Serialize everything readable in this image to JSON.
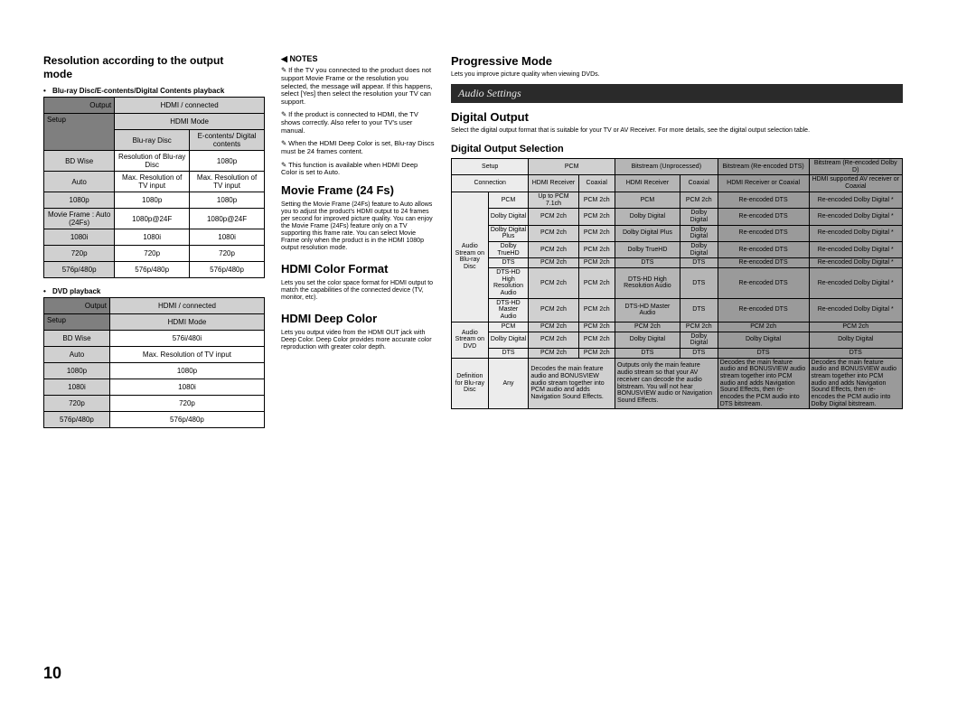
{
  "page_number": "10",
  "col1": {
    "heading": "Resolution according to the output mode",
    "bullet1": "Blu-ray Disc/E-contents/Digital Contents playback",
    "bullet2": "DVD playback",
    "t1": {
      "out": "Output",
      "setup": "Setup",
      "h_conn": "HDMI / connected",
      "h_mode": "HDMI Mode",
      "h_bd": "Blu-ray Disc",
      "h_ec": "E-contents/\nDigital\ncontents",
      "rows": [
        [
          "BD Wise",
          "Resolution of\nBlu-ray Disc",
          "1080p"
        ],
        [
          "Auto",
          "Max. Resolution\nof TV input",
          "Max. Resolution\nof TV input"
        ],
        [
          "1080p",
          "1080p",
          "1080p"
        ],
        [
          "Movie Frame :\nAuto (24Fs)",
          "1080p@24F",
          "1080p@24F"
        ],
        [
          "1080i",
          "1080i",
          "1080i"
        ],
        [
          "720p",
          "720p",
          "720p"
        ],
        [
          "576p/480p",
          "576p/480p",
          "576p/480p"
        ]
      ]
    },
    "t2": {
      "out": "Output",
      "setup": "Setup",
      "h_conn": "HDMI / connected",
      "h_mode": "HDMI Mode",
      "rows": [
        [
          "BD Wise",
          "576i/480i"
        ],
        [
          "Auto",
          "Max. Resolution of TV input"
        ],
        [
          "1080p",
          "1080p"
        ],
        [
          "1080i",
          "1080i"
        ],
        [
          "720p",
          "720p"
        ],
        [
          "576p/480p",
          "576p/480p"
        ]
      ]
    }
  },
  "col2": {
    "notes_label": "NOTES",
    "n1": "If the TV you connected to the product does not support Movie Frame or the resolution you selected, the message will appear. If this happens, select [Yes] then select the resolution your TV can support.",
    "n2": "If the product is connected to HDMI, the TV shows correctly. Also refer to your TV's user manual.",
    "n3": "When the HDMI Deep Color is set, Blu-ray Discs must be 24 frames content.",
    "n4": "This function is available when HDMI Deep Color is set to Auto.",
    "h_mff": "Movie Frame (24 Fs)",
    "mff_body": "Setting the Movie Frame (24Fs) feature to Auto allows you to adjust the product's HDMI output to 24 frames per second for improved picture quality. You can enjoy the Movie Frame (24Fs) feature only on a TV supporting this frame rate. You can select Movie Frame only when the product is in the HDMI 1080p output resolution mode.",
    "h_hcf": "HDMI Color Format",
    "hcf_body": "Lets you set the color space format for HDMI output to match the capabilities of the connected device (TV, monitor, etc).",
    "h_hdc": "HDMI Deep Color",
    "hdc_body": "Lets you output video from the HDMI OUT jack with Deep Color. Deep Color provides more accurate color reproduction with greater color depth."
  },
  "col3": {
    "h_prog": "Progressive Mode",
    "prog_body": "Lets you improve picture quality when viewing DVDs.",
    "bar": "Audio Settings",
    "h_do": "Digital Output",
    "do_body": "Select the digital output format that is suitable for your TV or AV Receiver. For more details, see the digital output selection table.",
    "h_dos": "Digital Output Selection",
    "t3": {
      "col_setup": "Setup",
      "col_conn": "Connection",
      "col_pcm": "PCM",
      "col_bs_u": "Bitstream\n(Unprocessed)",
      "col_bs_dts": "Bitstream\n(Re-encoded\nDTS)",
      "col_bs_dd": "Bitstream\n(Re-encoded\nDolby D)",
      "sub_hdmi": "HDMI\nReceiver",
      "sub_coax": "Coaxial",
      "sub_hdmir": "HDMI Receiver",
      "sub_hoc": "HDMI Receiver\nor Coaxial",
      "sub_hsup": "HDMI supported\nAV receiver or\nCoaxial",
      "grp_bd": "Audio Stream\non\nBlu-ray\nDisc",
      "grp_dvd": "Audio Stream\non DVD",
      "grp_def": "Definition for\nBlu-ray Disc",
      "rows_bd": [
        [
          "PCM",
          "Up to PCM 7.1ch",
          "PCM 2ch",
          "PCM",
          "PCM 2ch",
          "Re-encoded DTS",
          "Re-encoded\nDolby Digital *"
        ],
        [
          "Dolby Digital",
          "PCM 2ch",
          "PCM 2ch",
          "Dolby Digital",
          "Dolby Digital",
          "Re-encoded DTS",
          "Re-encoded\nDolby Digital *"
        ],
        [
          "Dolby Digital Plus",
          "PCM 2ch",
          "PCM 2ch",
          "Dolby Digital\nPlus",
          "Dolby Digital",
          "Re-encoded DTS",
          "Re-encoded\nDolby Digital *"
        ],
        [
          "Dolby TrueHD",
          "PCM 2ch",
          "PCM 2ch",
          "Dolby TrueHD",
          "Dolby Digital",
          "Re-encoded DTS",
          "Re-encoded\nDolby Digital *"
        ],
        [
          "DTS",
          "PCM 2ch",
          "PCM 2ch",
          "DTS",
          "DTS",
          "Re-encoded DTS",
          "Re-encoded\nDolby Digital *"
        ],
        [
          "DTS-HD High\nResolution Audio",
          "PCM 2ch",
          "PCM 2ch",
          "DTS-HD High\nResolution Audio",
          "DTS",
          "Re-encoded DTS",
          "Re-encoded\nDolby Digital *"
        ],
        [
          "DTS-HD Master\nAudio",
          "PCM 2ch",
          "PCM 2ch",
          "DTS-HD Master\nAudio",
          "DTS",
          "Re-encoded DTS",
          "Re-encoded\nDolby Digital *"
        ]
      ],
      "rows_dvd": [
        [
          "PCM",
          "PCM 2ch",
          "PCM 2ch",
          "PCM 2ch",
          "PCM 2ch",
          "PCM 2ch",
          "PCM 2ch"
        ],
        [
          "Dolby Digital",
          "PCM 2ch",
          "PCM 2ch",
          "Dolby Digital",
          "Dolby Digital",
          "Dolby Digital",
          "Dolby Digital"
        ],
        [
          "DTS",
          "PCM 2ch",
          "PCM 2ch",
          "DTS",
          "DTS",
          "DTS",
          "DTS"
        ]
      ],
      "def_any": "Any",
      "def_c1": "Decodes the main\nfeature audio and\nBONUSVIEW audio\nstream together\ninto PCM audio and\nadds Navigation\nSound Effects.",
      "def_c2": "Outputs only the\nmain feature audio\nstream so that your\nAV receiver can\ndecode the audio\nbitstream. You will not\nhear BONUSVIEW\naudio or Navigation\nSound Effects.",
      "def_c3": "Decodes the main\nfeature audio and\nBONUSVIEW audio\nstream together into\nPCM audio and adds\nNavigation Sound\nEffects, then re-\nencodes the PCM\naudio into DTS\nbitstream.",
      "def_c4": "Decodes the main\nfeature audio and\nBONUSVIEW audio\nstream together into\nPCM audio and adds\nNavigation Sound\nEffects, then re-\nencodes the PCM\naudio into Dolby\nDigital bitstream."
    }
  }
}
